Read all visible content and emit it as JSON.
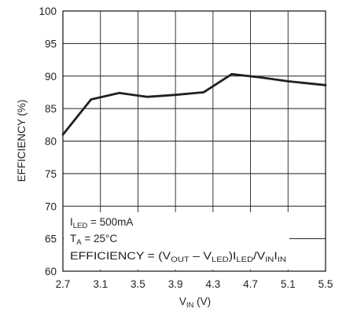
{
  "chart_data": {
    "type": "line",
    "xlabel": {
      "main": "V",
      "sub": "IN",
      "unit": " (V)"
    },
    "ylabel": "EFFICIENCY (%)",
    "xlim": [
      2.7,
      5.5
    ],
    "ylim": [
      60,
      100
    ],
    "x_ticks": [
      "2.7",
      "3.1",
      "3.5",
      "3.9",
      "4.3",
      "4.7",
      "5.1",
      "5.5"
    ],
    "y_ticks": [
      "60",
      "65",
      "70",
      "75",
      "80",
      "85",
      "90",
      "95",
      "100"
    ],
    "grid": true,
    "series": [
      {
        "x": [
          2.7,
          3.0,
          3.3,
          3.6,
          3.9,
          4.2,
          4.5,
          4.8,
          5.1,
          5.5
        ],
        "y": [
          81.0,
          86.4,
          87.4,
          86.8,
          87.1,
          87.5,
          90.3,
          89.8,
          89.2,
          88.6
        ],
        "color": "#231f20"
      }
    ],
    "annotations": {
      "line1": {
        "a": "I",
        "a_sub": "LED",
        "b": " = 500mA"
      },
      "line2": {
        "a": "T",
        "a_sub": "A",
        "b": " = 25°C"
      },
      "line3": {
        "p1": "EFFICIENCY = (V",
        "s1": "OUT",
        "p2": " – V",
        "s2": "LED",
        "p3": ")I",
        "s3": "LED",
        "p4": "/V",
        "s4": "IN",
        "p5": "I",
        "s5": "IN"
      }
    }
  }
}
